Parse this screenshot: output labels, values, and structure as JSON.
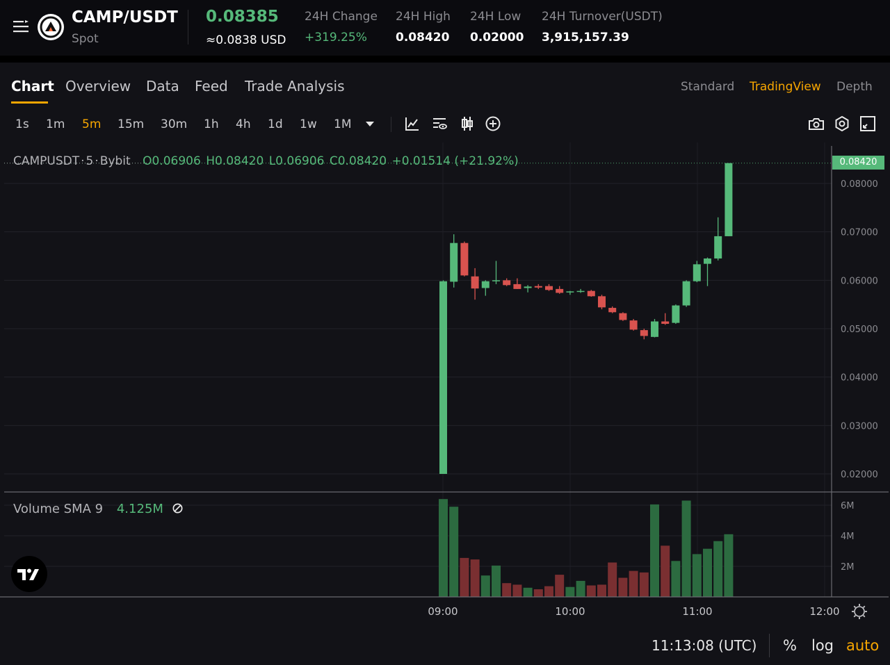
{
  "header": {
    "pair": "CAMP/USDT",
    "market": "Spot",
    "last_price": "0.08385",
    "usd_price": "≈0.0838 USD",
    "stats": [
      {
        "label": "24H Change",
        "value": "+319.25%"
      },
      {
        "label": "24H High",
        "value": "0.08420"
      },
      {
        "label": "24H Low",
        "value": "0.02000"
      },
      {
        "label": "24H Turnover(USDT)",
        "value": "3,915,157.39"
      }
    ]
  },
  "tabs": [
    "Chart",
    "Overview",
    "Data",
    "Feed",
    "Trade Analysis"
  ],
  "active_tab": "Chart",
  "views": [
    "Standard",
    "TradingView",
    "Depth"
  ],
  "active_view": "TradingView",
  "timeframes": [
    "1s",
    "1m",
    "5m",
    "15m",
    "30m",
    "1h",
    "4h",
    "1d",
    "1w",
    "1M"
  ],
  "active_timeframe": "5m",
  "toolbar_icons": [
    "chart-type-icon",
    "indicators-icon",
    "candle-style-icon",
    "add-icon",
    "camera-icon",
    "settings-icon",
    "fullscreen-icon"
  ],
  "legend": {
    "symbol": "CAMPUSDT",
    "interval": "5",
    "exchange": "Bybit",
    "open": "O0.06906",
    "high": "H0.08420",
    "low": "L0.06906",
    "close": "C0.08420",
    "change": "+0.01514 (+21.92%)"
  },
  "current_price_tag": "0.08420",
  "volume": {
    "label": "Volume SMA 9",
    "value": "4.125M"
  },
  "footer": {
    "clock": "11:13:08 (UTC)",
    "percent": "%",
    "log": "log",
    "auto": "auto"
  },
  "colors": {
    "up": "#56b97a",
    "down": "#d9534f",
    "accent": "#f7a600"
  },
  "chart_data": {
    "type": "candlestick",
    "price_axis": {
      "ticks": [
        "0.08000",
        "0.07000",
        "0.06000",
        "0.05000",
        "0.04000",
        "0.03000",
        "0.02000"
      ],
      "range": [
        0.0192,
        0.0862
      ]
    },
    "volume_axis": {
      "ticks": [
        "6M",
        "4M",
        "2M"
      ],
      "range": [
        0,
        6.4
      ]
    },
    "time_ticks": [
      "09:00",
      "10:00",
      "11:00",
      "12:00"
    ],
    "candles": [
      {
        "o": 0.02,
        "h": 0.06,
        "l": 0.02,
        "c": 0.0598,
        "v": 6.4
      },
      {
        "o": 0.0597,
        "h": 0.0695,
        "l": 0.0585,
        "c": 0.0677,
        "v": 5.9
      },
      {
        "o": 0.0677,
        "h": 0.068,
        "l": 0.0608,
        "c": 0.061,
        "v": 2.55
      },
      {
        "o": 0.0608,
        "h": 0.0625,
        "l": 0.056,
        "c": 0.0583,
        "v": 2.45
      },
      {
        "o": 0.0584,
        "h": 0.06,
        "l": 0.0568,
        "c": 0.0598,
        "v": 1.4
      },
      {
        "o": 0.0598,
        "h": 0.064,
        "l": 0.0592,
        "c": 0.06,
        "v": 2.05
      },
      {
        "o": 0.06,
        "h": 0.0604,
        "l": 0.0588,
        "c": 0.059,
        "v": 0.9
      },
      {
        "o": 0.0592,
        "h": 0.0604,
        "l": 0.0582,
        "c": 0.0582,
        "v": 0.8
      },
      {
        "o": 0.0584,
        "h": 0.059,
        "l": 0.0575,
        "c": 0.0587,
        "v": 0.6
      },
      {
        "o": 0.0588,
        "h": 0.0592,
        "l": 0.0582,
        "c": 0.0585,
        "v": 0.5
      },
      {
        "o": 0.0588,
        "h": 0.0592,
        "l": 0.0578,
        "c": 0.058,
        "v": 0.7
      },
      {
        "o": 0.0582,
        "h": 0.0588,
        "l": 0.0572,
        "c": 0.0574,
        "v": 1.45
      },
      {
        "o": 0.0575,
        "h": 0.0578,
        "l": 0.057,
        "c": 0.0577,
        "v": 0.65
      },
      {
        "o": 0.0577,
        "h": 0.0582,
        "l": 0.0574,
        "c": 0.0578,
        "v": 1.05
      },
      {
        "o": 0.0578,
        "h": 0.058,
        "l": 0.0566,
        "c": 0.0567,
        "v": 0.75
      },
      {
        "o": 0.0567,
        "h": 0.057,
        "l": 0.054,
        "c": 0.0544,
        "v": 0.8
      },
      {
        "o": 0.0543,
        "h": 0.0546,
        "l": 0.0532,
        "c": 0.0534,
        "v": 2.25
      },
      {
        "o": 0.0532,
        "h": 0.0534,
        "l": 0.0516,
        "c": 0.0518,
        "v": 1.25
      },
      {
        "o": 0.0517,
        "h": 0.052,
        "l": 0.0496,
        "c": 0.0498,
        "v": 1.7
      },
      {
        "o": 0.0497,
        "h": 0.05,
        "l": 0.0478,
        "c": 0.0485,
        "v": 1.6
      },
      {
        "o": 0.0483,
        "h": 0.052,
        "l": 0.0482,
        "c": 0.0515,
        "v": 6.05
      },
      {
        "o": 0.0515,
        "h": 0.0532,
        "l": 0.0508,
        "c": 0.051,
        "v": 3.35
      },
      {
        "o": 0.0512,
        "h": 0.055,
        "l": 0.051,
        "c": 0.0548,
        "v": 2.35
      },
      {
        "o": 0.0548,
        "h": 0.06,
        "l": 0.0545,
        "c": 0.0598,
        "v": 6.3
      },
      {
        "o": 0.0598,
        "h": 0.064,
        "l": 0.0596,
        "c": 0.0633,
        "v": 2.8
      },
      {
        "o": 0.0634,
        "h": 0.0647,
        "l": 0.0588,
        "c": 0.0645,
        "v": 3.15
      },
      {
        "o": 0.0645,
        "h": 0.073,
        "l": 0.0641,
        "c": 0.0691,
        "v": 3.65
      },
      {
        "o": 0.0691,
        "h": 0.0842,
        "l": 0.0691,
        "c": 0.0842,
        "v": 4.1
      }
    ]
  }
}
